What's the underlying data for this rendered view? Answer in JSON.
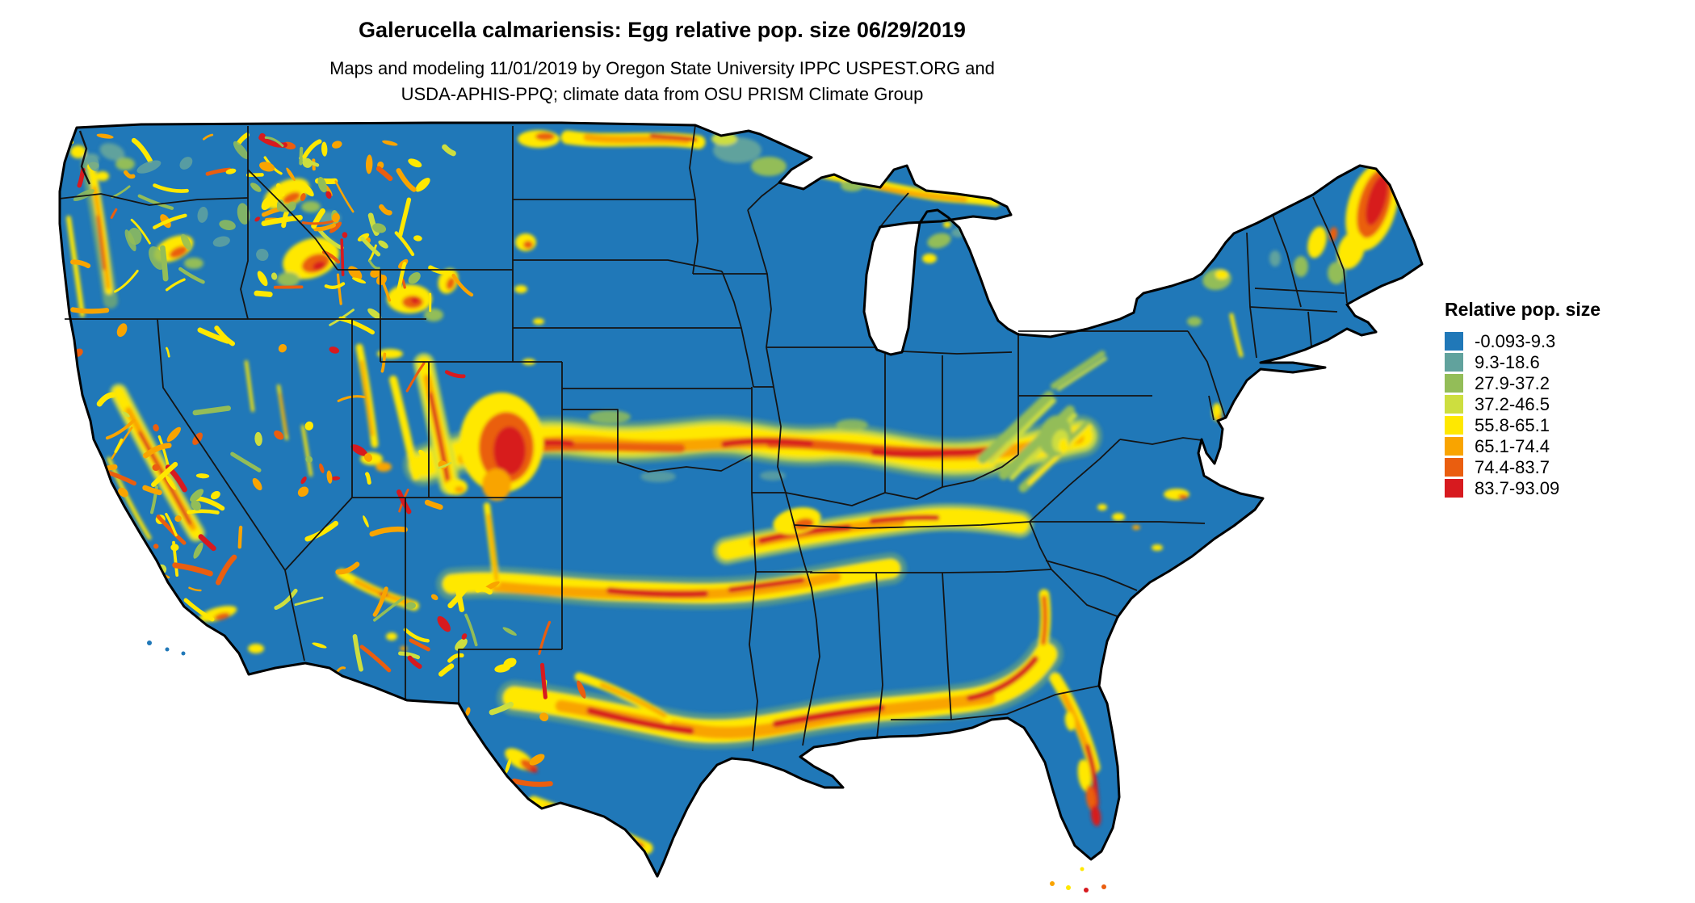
{
  "header": {
    "title": "Galerucella calmariensis: Egg relative pop. size 06/29/2019",
    "subtitle_line1": "Maps and modeling 11/01/2019 by Oregon State University IPPC USPEST.ORG and",
    "subtitle_line2": "USDA-APHIS-PPQ; climate data from OSU PRISM Climate Group"
  },
  "legend": {
    "title": "Relative pop. size",
    "items": [
      {
        "label": "-0.093-9.3",
        "color": "#2078B8"
      },
      {
        "label": "9.3-18.6",
        "color": "#61A29D"
      },
      {
        "label": "27.9-37.2",
        "color": "#93BD58"
      },
      {
        "label": "37.2-46.5",
        "color": "#CDDE3F"
      },
      {
        "label": "55.8-65.1",
        "color": "#FFE800"
      },
      {
        "label": "65.1-74.4",
        "color": "#F9A400"
      },
      {
        "label": "74.4-83.7",
        "color": "#EA5E0F"
      },
      {
        "label": "83.7-93.09",
        "color": "#D71A1F"
      }
    ]
  },
  "palette": {
    "blue": "#2078B8",
    "teal": "#61A29D",
    "green": "#93BD58",
    "yellowgreen": "#CDDE3F",
    "yellow": "#FFE800",
    "orange": "#F9A400",
    "darkorange": "#EA5E0F",
    "red": "#D71A1F"
  },
  "chart_data": {
    "type": "heatmap",
    "title": "Galerucella calmariensis: Egg relative pop. size 06/29/2019",
    "species": "Galerucella calmariensis",
    "variable": "Egg relative pop. size",
    "map_date": "06/29/2019",
    "model_run_date": "11/01/2019",
    "map_region": "Continental United States",
    "legend_title": "Relative pop. size",
    "value_min": -0.093,
    "value_max": 93.09,
    "classes": [
      {
        "label": "-0.093-9.3",
        "min": -0.093,
        "max": 9.3,
        "color": "#2078B8"
      },
      {
        "label": "9.3-18.6",
        "min": 9.3,
        "max": 18.6,
        "color": "#61A29D"
      },
      {
        "label": "27.9-37.2",
        "min": 27.9,
        "max": 37.2,
        "color": "#93BD58"
      },
      {
        "label": "37.2-46.5",
        "min": 37.2,
        "max": 46.5,
        "color": "#CDDE3F"
      },
      {
        "label": "55.8-65.1",
        "min": 55.8,
        "max": 65.1,
        "color": "#FFE800"
      },
      {
        "label": "65.1-74.4",
        "min": 65.1,
        "max": 74.4,
        "color": "#F9A400"
      },
      {
        "label": "74.4-83.7",
        "min": 74.4,
        "max": 83.7,
        "color": "#EA5E0F"
      },
      {
        "label": "83.7-93.09",
        "min": 83.7,
        "max": 93.09,
        "color": "#D71A1F"
      }
    ],
    "base_class_label": "-0.093-9.3",
    "high_value_regions": [
      "Central band from eastern Colorado through Kansas, Missouri, Illinois, Indiana and Ohio",
      "Southern band from New Mexico/Texas panhandle through Oklahoma, Arkansas into Kentucky/Tennessee",
      "Gulf Coast band from central Texas through Louisiana, Mississippi, Alabama and Georgia",
      "Scattered mountain-range bands across the West (Cascades, Sierra Nevada, Rockies, Wasatch)",
      "Northern Maine and northern Minnesota/Wisconsin/Michigan shorelines",
      "Central Florida peninsula streaks"
    ]
  }
}
